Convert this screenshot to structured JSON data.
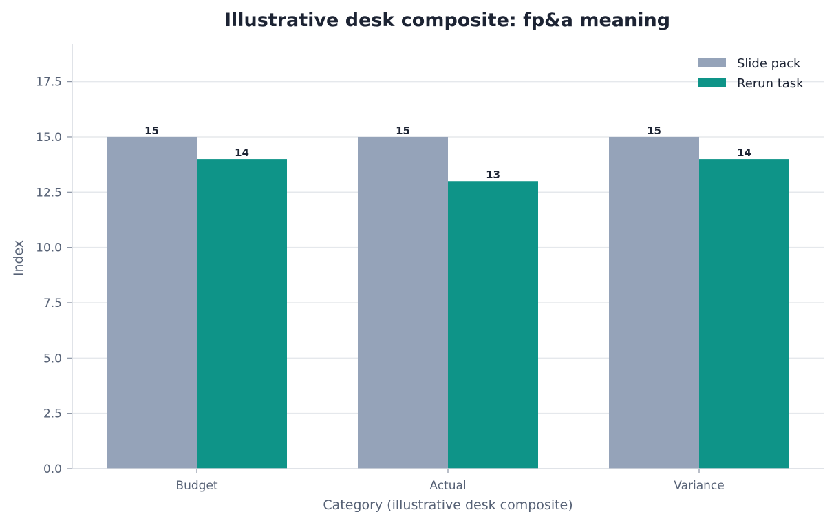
{
  "chart_data": {
    "type": "bar",
    "title": "Illustrative desk composite: fp&a meaning",
    "xlabel": "Category (illustrative desk composite)",
    "ylabel": "Index",
    "categories": [
      "Budget",
      "Actual",
      "Variance"
    ],
    "series": [
      {
        "name": "Slide pack",
        "values": [
          15,
          15,
          15
        ],
        "color": "#95a3b9"
      },
      {
        "name": "Rerun task",
        "values": [
          14,
          13,
          14
        ],
        "color": "#0e9488"
      }
    ],
    "ylim": [
      0,
      19.2
    ],
    "yticks": [
      "0.0",
      "2.5",
      "5.0",
      "7.5",
      "10.0",
      "12.5",
      "15.0",
      "17.5"
    ],
    "ytick_values": [
      0,
      2.5,
      5,
      7.5,
      10,
      12.5,
      15,
      17.5
    ],
    "data_labels": [
      [
        "15",
        "15",
        "15"
      ],
      [
        "14",
        "13",
        "14"
      ]
    ],
    "grid": "horizontal",
    "legend_position": "top-right"
  }
}
